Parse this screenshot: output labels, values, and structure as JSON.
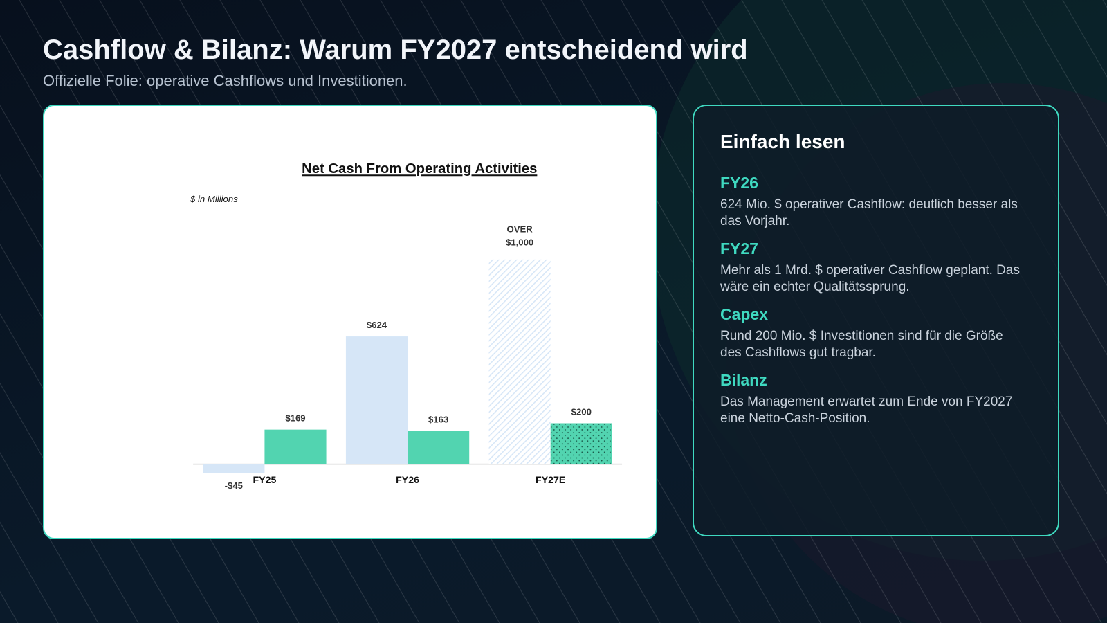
{
  "header": {
    "title": "Cashflow & Bilanz: Warum FY2027 entscheidend wird",
    "subtitle": "Offizielle Folie: operative Cashflows und Investitionen."
  },
  "chart_data": {
    "type": "bar",
    "title": "Net Cash From Operating Activities",
    "unit_note": "$ in Millions",
    "categories": [
      "FY25",
      "FY26",
      "FY27E"
    ],
    "series": [
      {
        "color": "#d6e6f7",
        "values": [
          -45,
          624,
          1000
        ],
        "value_labels": [
          "-$45",
          "$624",
          [
            "OVER",
            "$1,000"
          ]
        ],
        "patterns": [
          null,
          null,
          "hatch"
        ]
      },
      {
        "color": "#52d4b0",
        "values": [
          169,
          163,
          200
        ],
        "value_labels": [
          "$169",
          "$163",
          "$200"
        ],
        "patterns": [
          null,
          null,
          "dots"
        ]
      }
    ]
  },
  "panel": {
    "title": "Einfach lesen",
    "items": [
      {
        "heading": "FY26",
        "text": "624 Mio. $ operativer Cashflow: deutlich besser als das Vorjahr."
      },
      {
        "heading": "FY27",
        "text": "Mehr als 1 Mrd. $ operativer Cashflow geplant. Das wäre ein echter Qualitätssprung."
      },
      {
        "heading": "Capex",
        "text": "Rund 200 Mio. $ Investitionen sind für die Größe des Cashflows gut tragbar."
      },
      {
        "heading": "Bilanz",
        "text": "Das Management erwartet zum Ende von FY2027 eine Netto-Cash-Position."
      }
    ]
  }
}
